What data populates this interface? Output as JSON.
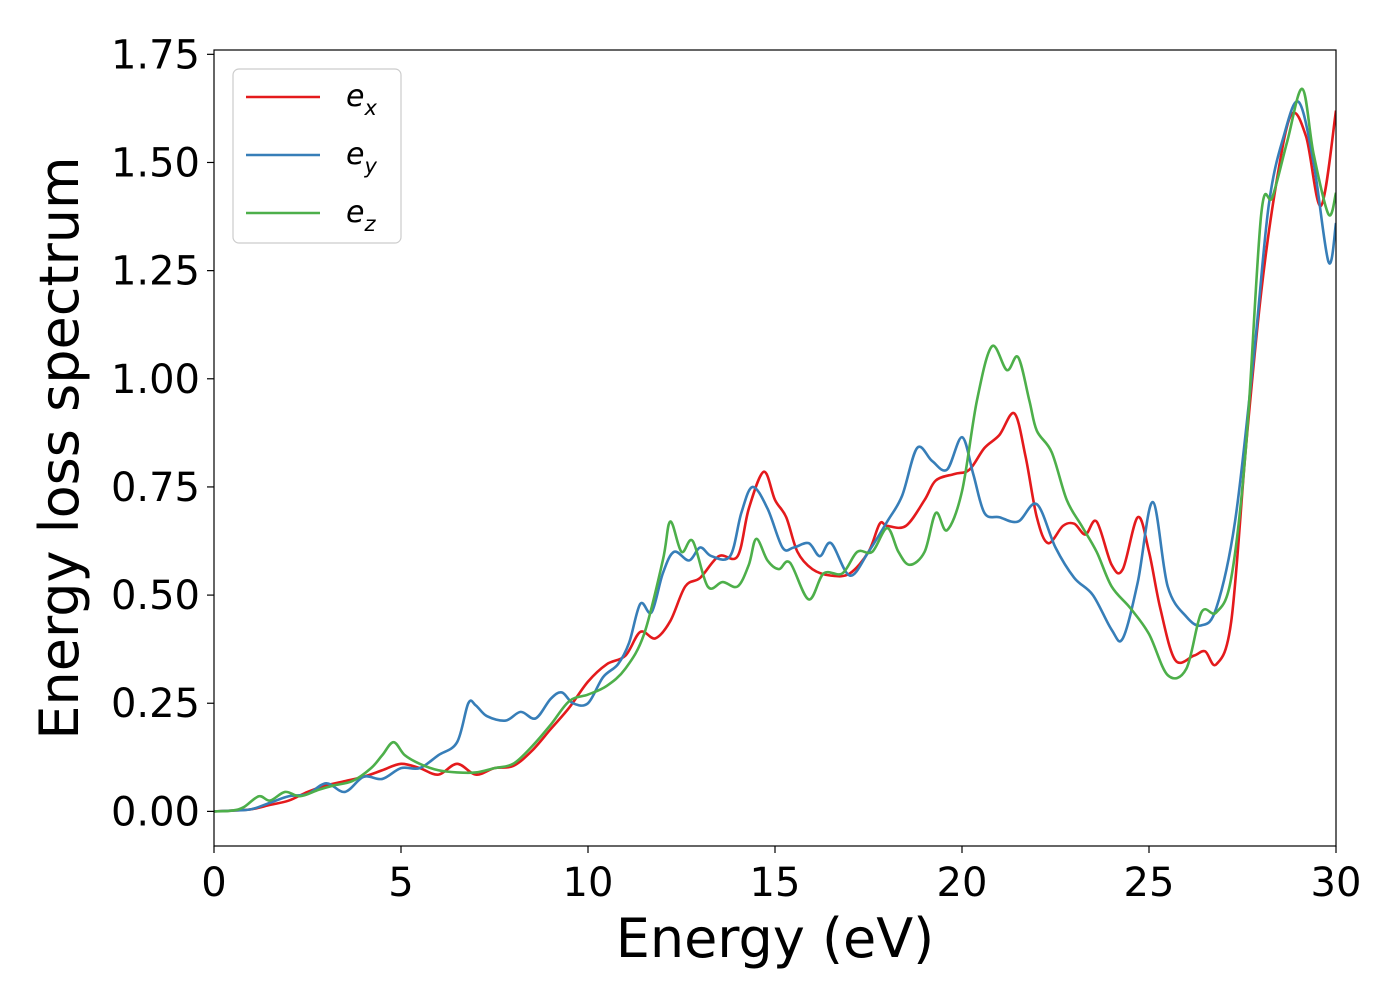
{
  "chart_data": {
    "type": "line",
    "xlabel": "Energy (eV)",
    "ylabel": "Energy loss spectrum",
    "xlim": [
      0,
      30
    ],
    "ylim": [
      -0.08,
      1.76
    ],
    "xticks": [
      0,
      5,
      10,
      15,
      20,
      25,
      30
    ],
    "xtick_labels": [
      "0",
      "5",
      "10",
      "15",
      "20",
      "25",
      "30"
    ],
    "yticks": [
      0,
      0.25,
      0.5,
      0.75,
      1.0,
      1.25,
      1.5,
      1.75
    ],
    "ytick_labels": [
      "0.00",
      "0.25",
      "0.50",
      "0.75",
      "1.00",
      "1.25",
      "1.50",
      "1.75"
    ],
    "grid": false,
    "legend_position": "top-left",
    "series": [
      {
        "name": "e_x",
        "label_base": "e",
        "label_sub": "x",
        "color": "#e41a1c",
        "points": [
          [
            0,
            0
          ],
          [
            0.5,
            0.002
          ],
          [
            1,
            0.005
          ],
          [
            1.5,
            0.015
          ],
          [
            2,
            0.025
          ],
          [
            2.5,
            0.045
          ],
          [
            3,
            0.06
          ],
          [
            3.5,
            0.07
          ],
          [
            4,
            0.08
          ],
          [
            4.5,
            0.095
          ],
          [
            5,
            0.11
          ],
          [
            5.5,
            0.1
          ],
          [
            6,
            0.085
          ],
          [
            6.5,
            0.11
          ],
          [
            7,
            0.085
          ],
          [
            7.5,
            0.1
          ],
          [
            8,
            0.105
          ],
          [
            8.5,
            0.14
          ],
          [
            9,
            0.19
          ],
          [
            9.5,
            0.24
          ],
          [
            10,
            0.3
          ],
          [
            10.5,
            0.34
          ],
          [
            11,
            0.36
          ],
          [
            11.4,
            0.415
          ],
          [
            11.8,
            0.4
          ],
          [
            12.2,
            0.44
          ],
          [
            12.6,
            0.52
          ],
          [
            13,
            0.54
          ],
          [
            13.5,
            0.59
          ],
          [
            14,
            0.59
          ],
          [
            14.3,
            0.7
          ],
          [
            14.7,
            0.785
          ],
          [
            15,
            0.72
          ],
          [
            15.3,
            0.68
          ],
          [
            15.6,
            0.6
          ],
          [
            16,
            0.56
          ],
          [
            16.5,
            0.545
          ],
          [
            17,
            0.55
          ],
          [
            17.5,
            0.6
          ],
          [
            17.8,
            0.665
          ],
          [
            18,
            0.66
          ],
          [
            18.5,
            0.66
          ],
          [
            19,
            0.72
          ],
          [
            19.3,
            0.765
          ],
          [
            19.8,
            0.78
          ],
          [
            20.2,
            0.79
          ],
          [
            20.6,
            0.84
          ],
          [
            21,
            0.87
          ],
          [
            21.4,
            0.92
          ],
          [
            21.7,
            0.82
          ],
          [
            22,
            0.68
          ],
          [
            22.3,
            0.62
          ],
          [
            22.7,
            0.66
          ],
          [
            23,
            0.665
          ],
          [
            23.3,
            0.64
          ],
          [
            23.6,
            0.67
          ],
          [
            24,
            0.57
          ],
          [
            24.3,
            0.56
          ],
          [
            24.7,
            0.68
          ],
          [
            25,
            0.6
          ],
          [
            25.3,
            0.47
          ],
          [
            25.7,
            0.35
          ],
          [
            26.2,
            0.36
          ],
          [
            26.5,
            0.37
          ],
          [
            26.8,
            0.34
          ],
          [
            27.2,
            0.44
          ],
          [
            27.6,
            0.85
          ],
          [
            28,
            1.2
          ],
          [
            28.4,
            1.45
          ],
          [
            28.8,
            1.61
          ],
          [
            29.2,
            1.56
          ],
          [
            29.6,
            1.4
          ],
          [
            30,
            1.62
          ]
        ]
      },
      {
        "name": "e_y",
        "label_base": "e",
        "label_sub": "y",
        "color": "#377eb8",
        "points": [
          [
            0,
            0
          ],
          [
            0.5,
            0.002
          ],
          [
            1,
            0.005
          ],
          [
            1.5,
            0.02
          ],
          [
            2,
            0.035
          ],
          [
            2.5,
            0.04
          ],
          [
            3,
            0.065
          ],
          [
            3.5,
            0.045
          ],
          [
            4,
            0.08
          ],
          [
            4.5,
            0.075
          ],
          [
            5,
            0.1
          ],
          [
            5.5,
            0.1
          ],
          [
            6,
            0.13
          ],
          [
            6.5,
            0.16
          ],
          [
            6.8,
            0.25
          ],
          [
            7,
            0.245
          ],
          [
            7.3,
            0.22
          ],
          [
            7.8,
            0.21
          ],
          [
            8.2,
            0.23
          ],
          [
            8.6,
            0.215
          ],
          [
            9,
            0.26
          ],
          [
            9.3,
            0.275
          ],
          [
            9.6,
            0.25
          ],
          [
            10,
            0.25
          ],
          [
            10.4,
            0.31
          ],
          [
            10.8,
            0.34
          ],
          [
            11.1,
            0.39
          ],
          [
            11.4,
            0.48
          ],
          [
            11.7,
            0.46
          ],
          [
            12,
            0.55
          ],
          [
            12.3,
            0.6
          ],
          [
            12.7,
            0.58
          ],
          [
            13,
            0.61
          ],
          [
            13.3,
            0.59
          ],
          [
            13.8,
            0.59
          ],
          [
            14.1,
            0.69
          ],
          [
            14.4,
            0.75
          ],
          [
            14.8,
            0.7
          ],
          [
            15.2,
            0.61
          ],
          [
            15.5,
            0.61
          ],
          [
            15.9,
            0.62
          ],
          [
            16.2,
            0.59
          ],
          [
            16.5,
            0.62
          ],
          [
            17,
            0.545
          ],
          [
            17.5,
            0.6
          ],
          [
            18,
            0.67
          ],
          [
            18.4,
            0.73
          ],
          [
            18.8,
            0.84
          ],
          [
            19.2,
            0.81
          ],
          [
            19.6,
            0.79
          ],
          [
            20,
            0.865
          ],
          [
            20.3,
            0.78
          ],
          [
            20.6,
            0.69
          ],
          [
            21,
            0.68
          ],
          [
            21.5,
            0.67
          ],
          [
            22,
            0.71
          ],
          [
            22.5,
            0.61
          ],
          [
            23,
            0.54
          ],
          [
            23.5,
            0.5
          ],
          [
            24,
            0.42
          ],
          [
            24.3,
            0.4
          ],
          [
            24.7,
            0.53
          ],
          [
            25.1,
            0.715
          ],
          [
            25.5,
            0.52
          ],
          [
            26,
            0.45
          ],
          [
            26.4,
            0.43
          ],
          [
            26.8,
            0.47
          ],
          [
            27.3,
            0.67
          ],
          [
            27.8,
            1.05
          ],
          [
            28.2,
            1.4
          ],
          [
            28.6,
            1.56
          ],
          [
            29,
            1.64
          ],
          [
            29.4,
            1.5
          ],
          [
            29.8,
            1.27
          ],
          [
            30,
            1.36
          ]
        ]
      },
      {
        "name": "e_z",
        "label_base": "e",
        "label_sub": "z",
        "color": "#4daf4a",
        "points": [
          [
            0,
            0
          ],
          [
            0.5,
            0.002
          ],
          [
            0.8,
            0.01
          ],
          [
            1.2,
            0.035
          ],
          [
            1.5,
            0.025
          ],
          [
            1.9,
            0.045
          ],
          [
            2.3,
            0.035
          ],
          [
            2.8,
            0.05
          ],
          [
            3.2,
            0.06
          ],
          [
            3.7,
            0.07
          ],
          [
            4.2,
            0.1
          ],
          [
            4.5,
            0.13
          ],
          [
            4.8,
            0.16
          ],
          [
            5.1,
            0.13
          ],
          [
            5.5,
            0.11
          ],
          [
            6,
            0.095
          ],
          [
            6.5,
            0.09
          ],
          [
            7,
            0.09
          ],
          [
            7.5,
            0.1
          ],
          [
            8,
            0.11
          ],
          [
            8.5,
            0.15
          ],
          [
            9,
            0.2
          ],
          [
            9.5,
            0.255
          ],
          [
            10,
            0.27
          ],
          [
            10.5,
            0.29
          ],
          [
            11,
            0.33
          ],
          [
            11.5,
            0.41
          ],
          [
            12,
            0.58
          ],
          [
            12.2,
            0.67
          ],
          [
            12.5,
            0.6
          ],
          [
            12.8,
            0.625
          ],
          [
            13.2,
            0.52
          ],
          [
            13.6,
            0.53
          ],
          [
            14,
            0.52
          ],
          [
            14.3,
            0.57
          ],
          [
            14.5,
            0.63
          ],
          [
            14.8,
            0.58
          ],
          [
            15.1,
            0.56
          ],
          [
            15.4,
            0.575
          ],
          [
            15.9,
            0.49
          ],
          [
            16.3,
            0.55
          ],
          [
            16.8,
            0.55
          ],
          [
            17.2,
            0.6
          ],
          [
            17.6,
            0.6
          ],
          [
            18,
            0.655
          ],
          [
            18.3,
            0.6
          ],
          [
            18.6,
            0.57
          ],
          [
            19,
            0.6
          ],
          [
            19.3,
            0.69
          ],
          [
            19.6,
            0.65
          ],
          [
            20,
            0.74
          ],
          [
            20.4,
            0.95
          ],
          [
            20.8,
            1.075
          ],
          [
            21.2,
            1.02
          ],
          [
            21.5,
            1.05
          ],
          [
            21.8,
            0.95
          ],
          [
            22,
            0.88
          ],
          [
            22.4,
            0.83
          ],
          [
            22.8,
            0.72
          ],
          [
            23.2,
            0.66
          ],
          [
            23.6,
            0.6
          ],
          [
            24,
            0.52
          ],
          [
            24.5,
            0.47
          ],
          [
            25,
            0.41
          ],
          [
            25.5,
            0.315
          ],
          [
            26,
            0.33
          ],
          [
            26.4,
            0.46
          ],
          [
            26.8,
            0.46
          ],
          [
            27.2,
            0.54
          ],
          [
            27.6,
            0.85
          ],
          [
            28,
            1.38
          ],
          [
            28.3,
            1.42
          ],
          [
            28.7,
            1.55
          ],
          [
            29.1,
            1.67
          ],
          [
            29.4,
            1.52
          ],
          [
            29.8,
            1.38
          ],
          [
            30,
            1.43
          ]
        ]
      }
    ]
  }
}
